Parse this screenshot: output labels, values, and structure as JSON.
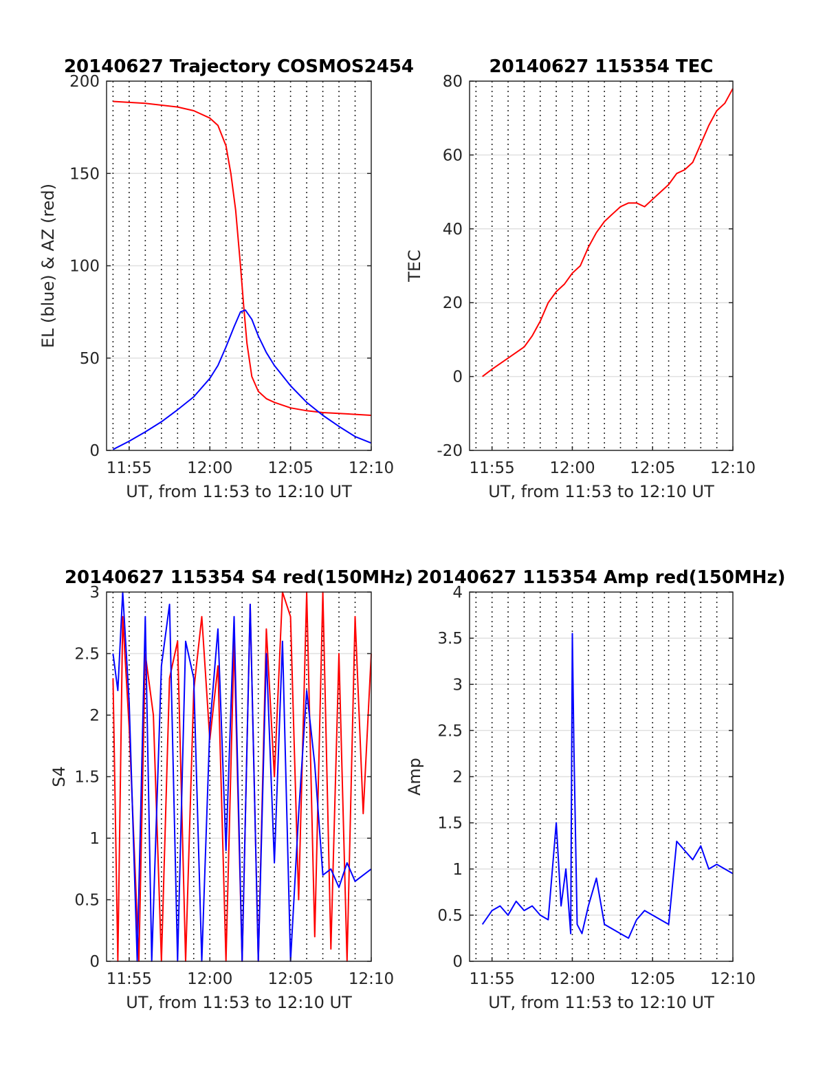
{
  "chart_data": [
    {
      "type": "line",
      "title": "20140627 Trajectory COSMOS2454",
      "xlabel": "UT, from 11:53 to 12:10 UT",
      "ylabel": "EL (blue) & AZ (red)",
      "x_unit": "minutes after 11:53 UT",
      "xlim": [
        0.6,
        17
      ],
      "ylim": [
        0,
        200
      ],
      "x_ticks": [
        2,
        7,
        12,
        17
      ],
      "x_tick_labels": [
        "11:55",
        "12:00",
        "12:05",
        "12:10"
      ],
      "y_ticks": [
        0,
        50,
        100,
        150,
        200
      ],
      "y_tick_labels": [
        "0",
        "50",
        "100",
        "150",
        "200"
      ],
      "grid": "on (dotted vertical lines at 1-minute intervals, light horizontal lines)",
      "series": [
        {
          "color": "#ff0000",
          "x": [
            1.0,
            3.0,
            5.0,
            6.0,
            7.0,
            7.5,
            8.0,
            8.3,
            8.6,
            8.9,
            9.1,
            9.3,
            9.6,
            10.0,
            10.5,
            11.0,
            12.0,
            13.0,
            14.0,
            15.0,
            16.0,
            17.0
          ],
          "values": [
            189,
            188,
            186,
            184,
            180,
            176,
            165,
            150,
            130,
            100,
            78,
            58,
            40,
            32,
            28,
            26,
            23,
            21.5,
            20.5,
            20,
            19.5,
            19
          ]
        },
        {
          "color": "#0000ff",
          "x": [
            1.0,
            2.0,
            3.0,
            4.0,
            5.0,
            6.0,
            7.0,
            7.5,
            8.0,
            8.5,
            8.9,
            9.2,
            9.6,
            10.0,
            10.5,
            11.0,
            12.0,
            13.0,
            14.0,
            15.0,
            16.0,
            17.0
          ],
          "values": [
            0.5,
            5,
            10,
            15.5,
            22,
            29,
            39,
            46,
            56,
            67,
            75,
            76,
            71,
            62,
            53,
            46,
            35,
            26,
            19,
            13,
            7.5,
            4
          ]
        }
      ]
    },
    {
      "type": "line",
      "title": "20140627 115354 TEC",
      "xlabel": "UT, from 11:53 to 12:10 UT",
      "ylabel": "TEC",
      "x_unit": "minutes after 11:53 UT",
      "xlim": [
        0.6,
        17
      ],
      "ylim": [
        -20,
        80
      ],
      "x_ticks": [
        2,
        7,
        12,
        17
      ],
      "x_tick_labels": [
        "11:55",
        "12:00",
        "12:05",
        "12:10"
      ],
      "y_ticks": [
        -20,
        0,
        20,
        40,
        60,
        80
      ],
      "y_tick_labels": [
        "-20",
        "0",
        "20",
        "40",
        "60",
        "80"
      ],
      "grid": "on",
      "series": [
        {
          "color": "#ff0000",
          "x": [
            1.4,
            2.0,
            3.0,
            4.0,
            4.5,
            5.0,
            5.5,
            6.0,
            6.5,
            7.0,
            7.5,
            8.0,
            8.5,
            9.0,
            9.5,
            10.0,
            10.5,
            11.0,
            11.5,
            12.0,
            12.5,
            13.0,
            13.5,
            14.0,
            14.5,
            15.0,
            15.5,
            16.0,
            16.5,
            17.0
          ],
          "values": [
            0,
            2,
            5,
            8,
            11,
            15,
            20,
            23,
            25,
            28,
            30,
            35,
            39,
            42,
            44,
            46,
            47,
            47,
            46,
            48,
            50,
            52,
            55,
            56,
            58,
            63,
            68,
            72,
            74,
            78
          ]
        }
      ]
    },
    {
      "type": "line",
      "title": "20140627 115354 S4 red(150MHz)",
      "xlabel": "UT, from 11:53 to 12:10 UT",
      "ylabel": "S4",
      "x_unit": "minutes after 11:53 UT",
      "xlim": [
        0.6,
        17
      ],
      "ylim": [
        0,
        3
      ],
      "x_ticks": [
        2,
        7,
        12,
        17
      ],
      "x_tick_labels": [
        "11:55",
        "12:00",
        "12:05",
        "12:10"
      ],
      "y_ticks": [
        0,
        0.5,
        1,
        1.5,
        2,
        2.5,
        3
      ],
      "y_tick_labels": [
        "0",
        "0.5",
        "1",
        "1.5",
        "2",
        "2.5",
        "3"
      ],
      "grid": "on",
      "series": [
        {
          "color": "#ff0000",
          "x": [
            1.0,
            1.3,
            1.6,
            2.0,
            2.6,
            3.0,
            3.5,
            4.0,
            4.5,
            5.0,
            5.5,
            6.0,
            6.5,
            7.0,
            7.5,
            8.0,
            8.5,
            9.0,
            9.5,
            10.0,
            10.5,
            11.0,
            11.5,
            12.0,
            12.5,
            13.0,
            13.5,
            14.0,
            14.5,
            15.0,
            15.5,
            16.0,
            16.5,
            17.0
          ],
          "values": [
            2.3,
            0,
            2.8,
            1.9,
            0,
            2.5,
            2.0,
            0,
            2.3,
            2.6,
            0,
            2.2,
            2.8,
            1.8,
            2.4,
            0,
            2.6,
            0,
            2.9,
            0,
            2.7,
            1.5,
            3.0,
            2.8,
            0.5,
            3.0,
            0.2,
            3.0,
            0.1,
            2.5,
            0,
            2.8,
            1.2,
            2.5
          ]
        },
        {
          "color": "#0000ff",
          "x": [
            1.0,
            1.3,
            1.6,
            2.0,
            2.5,
            3.0,
            3.4,
            4.0,
            4.5,
            5.0,
            5.5,
            6.0,
            6.5,
            7.0,
            7.5,
            8.0,
            8.5,
            9.0,
            9.5,
            10.0,
            10.5,
            11.0,
            11.5,
            12.0,
            12.5,
            13.0,
            13.5,
            14.0,
            14.5,
            15.0,
            15.5,
            16.0,
            16.5,
            17.0
          ],
          "values": [
            2.5,
            2.2,
            3.0,
            2.1,
            0,
            2.8,
            0,
            2.4,
            2.9,
            0,
            2.6,
            2.3,
            0,
            1.9,
            2.7,
            0.9,
            2.8,
            0,
            2.9,
            0,
            2.5,
            0.8,
            2.6,
            0,
            1.2,
            2.2,
            1.6,
            0.7,
            0.75,
            0.6,
            0.8,
            0.65,
            0.7,
            0.75
          ]
        }
      ]
    },
    {
      "type": "line",
      "title": "20140627 115354 Amp red(150MHz)",
      "xlabel": "UT, from 11:53 to 12:10 UT",
      "ylabel": "Amp",
      "x_unit": "minutes after 11:53 UT",
      "xlim": [
        0.6,
        17
      ],
      "ylim": [
        0,
        4
      ],
      "x_ticks": [
        2,
        7,
        12,
        17
      ],
      "x_tick_labels": [
        "11:55",
        "12:00",
        "12:05",
        "12:10"
      ],
      "y_ticks": [
        0,
        0.5,
        1,
        1.5,
        2,
        2.5,
        3,
        3.5,
        4
      ],
      "y_tick_labels": [
        "0",
        "0.5",
        "1",
        "1.5",
        "2",
        "2.5",
        "3",
        "3.5",
        "4"
      ],
      "grid": "on",
      "series": [
        {
          "color": "#0000ff",
          "x": [
            1.4,
            2.0,
            2.5,
            3.0,
            3.5,
            4.0,
            4.5,
            5.0,
            5.5,
            6.0,
            6.3,
            6.6,
            6.9,
            7.0,
            7.1,
            7.3,
            7.6,
            8.0,
            8.5,
            9.0,
            9.5,
            10.0,
            10.5,
            11.0,
            11.5,
            12.0,
            12.5,
            13.0,
            13.5,
            14.0,
            14.5,
            15.0,
            15.5,
            16.0,
            16.5,
            17.0
          ],
          "values": [
            0.4,
            0.55,
            0.6,
            0.5,
            0.65,
            0.55,
            0.6,
            0.5,
            0.45,
            1.5,
            0.6,
            1.0,
            0.3,
            3.55,
            2.3,
            0.4,
            0.3,
            0.6,
            0.9,
            0.4,
            0.35,
            0.3,
            0.25,
            0.45,
            0.55,
            0.5,
            0.45,
            0.4,
            1.3,
            1.2,
            1.1,
            1.25,
            1.0,
            1.05,
            1.0,
            0.95
          ]
        }
      ]
    }
  ]
}
